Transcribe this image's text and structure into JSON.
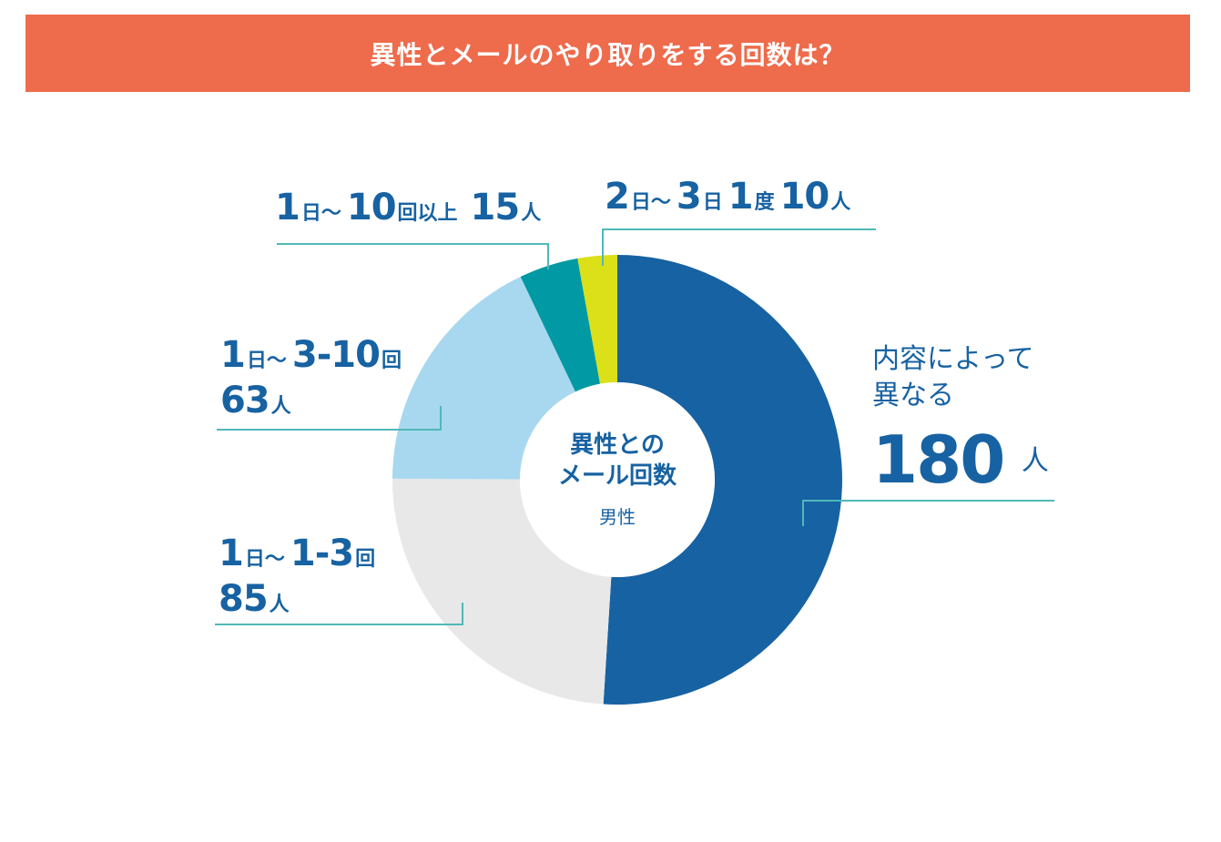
{
  "title": "異性とメールのやり取りをする回数は？",
  "colors": {
    "title_bg": "#ee6b4c",
    "text": "#1762a2",
    "leader": "#50b8b8"
  },
  "center": {
    "line1": "異性との",
    "line2": "メール回数",
    "sub": "男性"
  },
  "labels": {
    "lbl_180": {
      "line1": "内容によって",
      "line2": "異なる",
      "num": "180",
      "unit": "人"
    },
    "lbl_85": {
      "n1": "1",
      "u1": "日～",
      "n2": "1-3",
      "u2": "回",
      "n3": "85",
      "u3": "人"
    },
    "lbl_63": {
      "n1": "1",
      "u1": "日～",
      "n2": "3-10",
      "u2": "回",
      "n3": "63",
      "u3": "人"
    },
    "lbl_15": {
      "n1": "1",
      "u1": "日～",
      "n2": "10",
      "u2": "回以上",
      "n3": "15",
      "u3": "人"
    },
    "lbl_10": {
      "n1": "2",
      "u1": "日～",
      "n2": "3",
      "u2": "日",
      "n3": "1",
      "u3": "度",
      "n4": "10",
      "u4": "人"
    }
  },
  "chart_data": {
    "type": "pie",
    "title": "異性とメールのやり取りをする回数は？",
    "subtitle": "男性",
    "slices": [
      {
        "label": "内容によって異なる",
        "value": 180,
        "color": "#1762a2"
      },
      {
        "label": "1日～1-3回",
        "value": 85,
        "color": "#e8e8e8"
      },
      {
        "label": "1日～3-10回",
        "value": 63,
        "color": "#a7d8ef"
      },
      {
        "label": "1日～10回以上",
        "value": 15,
        "color": "#0199a3"
      },
      {
        "label": "2日～3日1度",
        "value": 10,
        "color": "#dbe018"
      }
    ]
  }
}
